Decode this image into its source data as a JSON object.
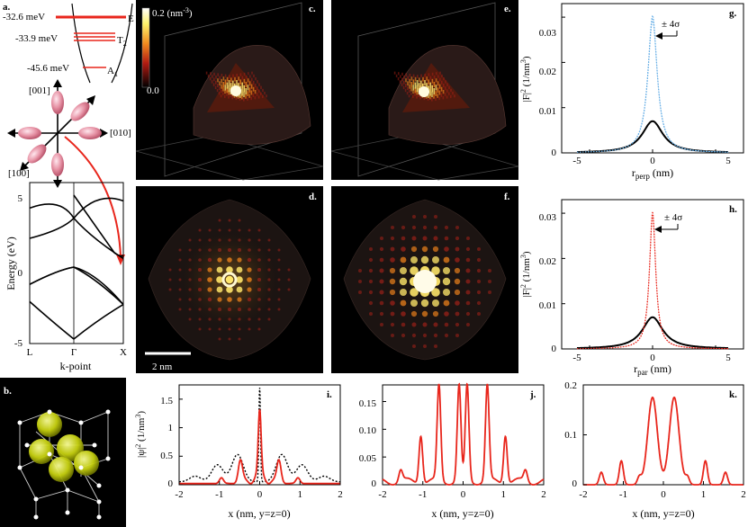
{
  "panels": {
    "a": "a.",
    "b": "b.",
    "c": "c.",
    "d": "d.",
    "e": "e.",
    "f": "f.",
    "g": "g.",
    "h": "h.",
    "i": "i.",
    "j": "j.",
    "k": "k."
  },
  "levels": [
    {
      "energy": "-32.6 meV",
      "label": "E"
    },
    {
      "energy": "-33.9 meV",
      "label": "T",
      "sub": "2"
    },
    {
      "energy": "-45.6 meV",
      "label": "A",
      "sub": "1"
    }
  ],
  "valleys": {
    "z": "[001]",
    "y": "[010]",
    "x": "[100]"
  },
  "colorbar": {
    "top": "0.2 (nm",
    "top_sup": "-3",
    "top_close": ")",
    "bottom": "0.0"
  },
  "scalebar": "2 nm",
  "band": {
    "ylabel": "Energy (eV)",
    "xlabel": "k-point",
    "xticks": [
      "L",
      "Γ",
      "X"
    ],
    "yticks": [
      "5",
      "0",
      "-5"
    ]
  },
  "g_h": {
    "ylabel_pre": "|F|",
    "ylabel_sup": "2",
    "ylabel_post": " (1/nm",
    "ylabel_sup2": "3",
    "ylabel_close": ")",
    "xlabel_g": "r",
    "xlabel_g_sub": "perp",
    "xlabel_h": "r",
    "xlabel_h_sub": "par",
    "xlabel_unit": " (nm)",
    "sigma": "± 4σ",
    "xticks": [
      "-5",
      "0",
      "5"
    ],
    "yticks": [
      "0",
      "0.01",
      "0.02",
      "0.03"
    ]
  },
  "ijk": {
    "ylabel_pre": "|ψ|",
    "ylabel_sup": "2",
    "ylabel_post": " (1/nm",
    "ylabel_sup2": "3",
    "ylabel_close": ")",
    "xlabel": "x (nm, y=z=0)",
    "xticks": [
      "-2",
      "-1",
      "0",
      "1",
      "2"
    ],
    "i_yticks": [
      "0",
      "0.5",
      "1",
      "1.5"
    ],
    "j_yticks": [
      "0",
      "0.05",
      "0.10",
      "0.15"
    ],
    "k_yticks": [
      "0",
      "0.1",
      "0.2"
    ]
  },
  "colors": {
    "red": "#e8261c",
    "blue": "#6ab0e6",
    "black": "#000000"
  },
  "chart_data": [
    {
      "id": "a-band",
      "type": "line",
      "xlabel": "k-point",
      "ylabel": "Energy (eV)",
      "ylim": [
        -5,
        5
      ],
      "categories": [
        "L",
        "Γ",
        "X"
      ]
    },
    {
      "id": "g",
      "type": "line",
      "xlabel": "r_perp (nm)",
      "ylabel": "|F|^2 (1/nm^3)",
      "xlim": [
        -6,
        6
      ],
      "ylim": [
        0,
        0.033
      ],
      "series": [
        {
          "style": "black-solid",
          "peak": 0.007,
          "width": 1.0
        },
        {
          "style": "blue-dotted",
          "peak": 0.03,
          "width": 0.45
        }
      ],
      "annotation": "± 4σ"
    },
    {
      "id": "h",
      "type": "line",
      "xlabel": "r_par (nm)",
      "ylabel": "|F|^2 (1/nm^3)",
      "xlim": [
        -6,
        6
      ],
      "ylim": [
        0,
        0.033
      ],
      "series": [
        {
          "style": "black-solid",
          "peak": 0.007,
          "width": 1.0
        },
        {
          "style": "red-dotted",
          "peak": 0.03,
          "width": 0.3
        }
      ],
      "annotation": "± 4σ"
    },
    {
      "id": "i",
      "type": "line",
      "xlabel": "x (nm, y=z=0)",
      "ylabel": "|ψ|^2 (1/nm^3)",
      "xlim": [
        -2,
        2
      ],
      "ylim": [
        0,
        1.75
      ],
      "series": [
        {
          "style": "red",
          "center_peak": 1.05,
          "peaks": [
            [
              0.48,
              0.35
            ],
            [
              0.95,
              0.1
            ]
          ]
        },
        {
          "style": "black-dotted",
          "center_peak": 1.65,
          "peaks": [
            [
              0.55,
              0.48
            ],
            [
              1.05,
              0.3
            ],
            [
              1.6,
              0.1
            ]
          ]
        }
      ]
    },
    {
      "id": "j",
      "type": "line",
      "xlabel": "x (nm, y=z=0)",
      "xlim": [
        -2,
        2
      ],
      "ylim": [
        0,
        0.18
      ],
      "series": [
        {
          "style": "red",
          "peaks": [
            [
              -1.05,
              0.087
            ],
            [
              -0.6,
              0.172
            ],
            [
              -0.1,
              0.172
            ],
            [
              0.1,
              0.172
            ],
            [
              0.6,
              0.172
            ],
            [
              1.05,
              0.087
            ],
            [
              -1.55,
              0.02
            ],
            [
              1.55,
              0.02
            ]
          ]
        }
      ]
    },
    {
      "id": "k",
      "type": "line",
      "xlabel": "x (nm, y=z=0)",
      "xlim": [
        -2,
        2
      ],
      "ylim": [
        0,
        0.2
      ],
      "series": [
        {
          "style": "red",
          "peaks": [
            [
              -0.27,
              0.175
            ],
            [
              0.27,
              0.175
            ],
            [
              -1.05,
              0.048
            ],
            [
              1.05,
              0.048
            ],
            [
              -0.6,
              0.015
            ],
            [
              0.6,
              0.015
            ],
            [
              -1.55,
              0.025
            ],
            [
              1.55,
              0.025
            ]
          ]
        }
      ]
    }
  ]
}
